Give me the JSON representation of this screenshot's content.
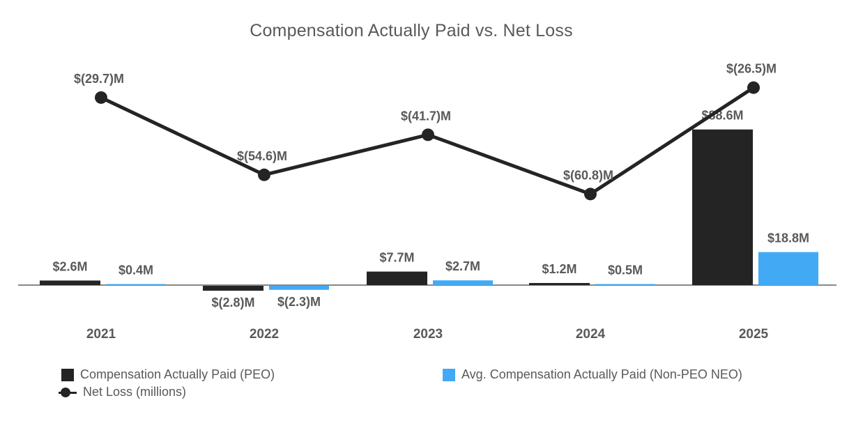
{
  "title": "Compensation Actually Paid vs. Net Loss",
  "colors": {
    "peo_bar": "#242424",
    "neo_bar": "#42AAF5",
    "net_loss_line": "#242424",
    "label_text": "#595959",
    "axis": "#888888"
  },
  "chart_data": {
    "type": "bar+line combo",
    "title": "Compensation Actually Paid vs. Net Loss",
    "categories": [
      "2021",
      "2022",
      "2023",
      "2024",
      "2025"
    ],
    "series": [
      {
        "name": "Compensation Actually Paid (PEO)",
        "type": "bar",
        "key": "peo",
        "color_key": "peo_bar",
        "values": [
          2.6,
          -2.8,
          7.7,
          1.2,
          88.6
        ],
        "labels": [
          "$2.6M",
          "$(2.8)M",
          "$7.7M",
          "$1.2M",
          "$88.6M"
        ]
      },
      {
        "name": "Avg. Compensation Actually Paid (Non-PEO NEO)",
        "type": "bar",
        "key": "neo",
        "color_key": "neo_bar",
        "values": [
          0.4,
          -2.3,
          2.7,
          0.5,
          18.8
        ],
        "labels": [
          "$0.4M",
          "$(2.3)M",
          "$2.7M",
          "$0.5M",
          "$18.8M"
        ]
      },
      {
        "name": "Net Loss (millions)",
        "type": "line",
        "key": "net_loss",
        "color_key": "net_loss_line",
        "values": [
          -29.7,
          -54.6,
          -41.7,
          -60.8,
          -26.5
        ],
        "labels": [
          "$(29.7)M",
          "$(54.6)M",
          "$(41.7)M",
          "$(60.8)M",
          "$(26.5)M"
        ]
      }
    ],
    "value_unit": "millions USD",
    "y_axis_ticks": "none (data labels only)",
    "grid": "off",
    "legend_position": "bottom"
  },
  "legend": {
    "peo": "Compensation Actually Paid (PEO)",
    "net_loss": "Net Loss (millions)",
    "neo": "Avg. Compensation Actually Paid (Non-PEO NEO)"
  }
}
